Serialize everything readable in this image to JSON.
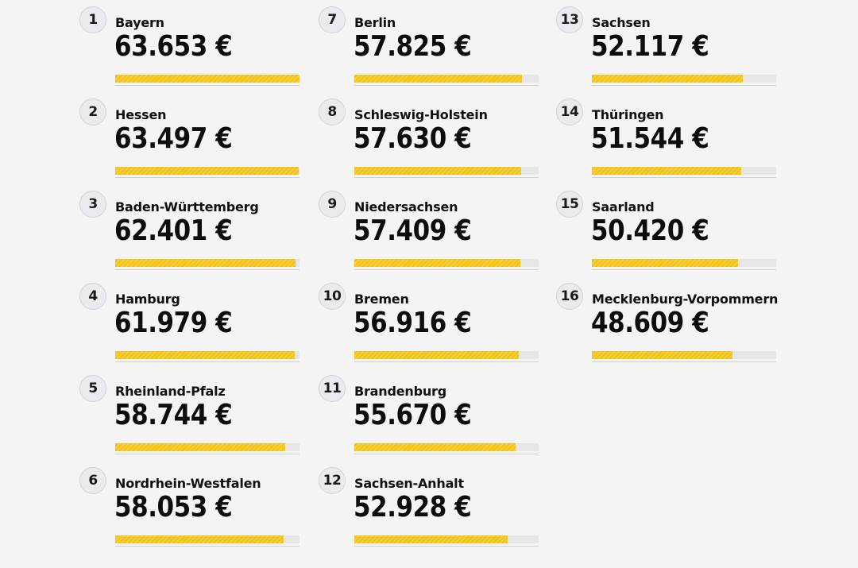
{
  "colors": {
    "background": "#f4f4f4",
    "bar": "#f2c41a",
    "badge": "#e9ebee",
    "text": "#111111"
  },
  "ranking": [
    {
      "rank": "1",
      "state": "Bayern",
      "salary": "63.653 €",
      "value": 63653
    },
    {
      "rank": "2",
      "state": "Hessen",
      "salary": "63.497 €",
      "value": 63497
    },
    {
      "rank": "3",
      "state": "Baden-Württemberg",
      "salary": "62.401 €",
      "value": 62401
    },
    {
      "rank": "4",
      "state": "Hamburg",
      "salary": "61.979 €",
      "value": 61979
    },
    {
      "rank": "5",
      "state": "Rheinland-Pfalz",
      "salary": "58.744 €",
      "value": 58744
    },
    {
      "rank": "6",
      "state": "Nordrhein-Westfalen",
      "salary": "58.053 €",
      "value": 58053
    },
    {
      "rank": "7",
      "state": "Berlin",
      "salary": "57.825 €",
      "value": 57825
    },
    {
      "rank": "8",
      "state": "Schleswig-Holstein",
      "salary": "57.630 €",
      "value": 57630
    },
    {
      "rank": "9",
      "state": "Niedersachsen",
      "salary": "57.409 €",
      "value": 57409
    },
    {
      "rank": "10",
      "state": "Bremen",
      "salary": "56.916 €",
      "value": 56916
    },
    {
      "rank": "11",
      "state": "Brandenburg",
      "salary": "55.670 €",
      "value": 55670
    },
    {
      "rank": "12",
      "state": "Sachsen-Anhalt",
      "salary": "52.928 €",
      "value": 52928
    },
    {
      "rank": "13",
      "state": "Sachsen",
      "salary": "52.117 €",
      "value": 52117
    },
    {
      "rank": "14",
      "state": "Thüringen",
      "salary": "51.544 €",
      "value": 51544
    },
    {
      "rank": "15",
      "state": "Saarland",
      "salary": "50.420 €",
      "value": 50420
    },
    {
      "rank": "16",
      "state": "Mecklenburg-Vorpommern",
      "salary": "48.609 €",
      "value": 48609
    }
  ]
}
